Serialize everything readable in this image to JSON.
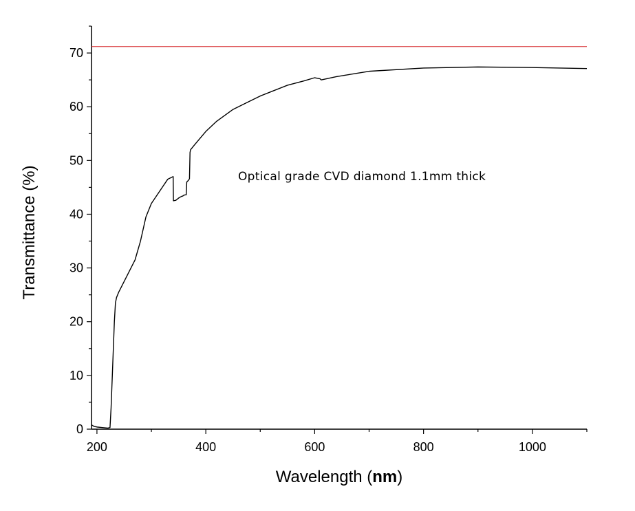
{
  "chart_data": {
    "type": "line",
    "title": "",
    "xlabel_prefix": "Wavelength (",
    "xlabel_unit": "nm",
    "xlabel_suffix": ")",
    "ylabel": "Transmittance (%)",
    "xlim": [
      190,
      1100
    ],
    "ylim": [
      0,
      75
    ],
    "x_ticks": [
      200,
      400,
      600,
      800,
      1000
    ],
    "y_ticks": [
      0,
      10,
      20,
      30,
      40,
      50,
      60,
      70
    ],
    "grid": false,
    "annotation": "Optical grade CVD diamond 1.1mm thick",
    "reference_line": {
      "y": 71.2,
      "color": "#d62728"
    },
    "series_color": "#000000",
    "series": [
      {
        "x": [
          190,
          195,
          200,
          210,
          220,
          224,
          226,
          229,
          232,
          234,
          236,
          240,
          250,
          260,
          270,
          280,
          290,
          300,
          310,
          320,
          330,
          340,
          340.5,
          345,
          350,
          355,
          358,
          359,
          362,
          364,
          365,
          368,
          370,
          371,
          372,
          380,
          400,
          420,
          450,
          480,
          500,
          520,
          550,
          580,
          600,
          605,
          610,
          612,
          640,
          700,
          800,
          900,
          1000,
          1100
        ],
        "y": [
          0.8,
          0.5,
          0.4,
          0.3,
          0.2,
          0.3,
          4,
          12,
          20,
          23.5,
          24.5,
          25.5,
          27.5,
          29.5,
          31.5,
          35,
          39.5,
          42,
          43.5,
          45,
          46.5,
          47,
          42.5,
          42.6,
          43,
          43.3,
          43.4,
          43.5,
          43.6,
          43.6,
          46,
          46.3,
          46.6,
          51.5,
          52,
          53,
          55.4,
          57.3,
          59.5,
          61,
          62,
          62.8,
          64,
          64.8,
          65.4,
          65.3,
          65.2,
          65,
          65.6,
          66.6,
          67.2,
          67.4,
          67.3,
          67.1
        ]
      }
    ]
  }
}
